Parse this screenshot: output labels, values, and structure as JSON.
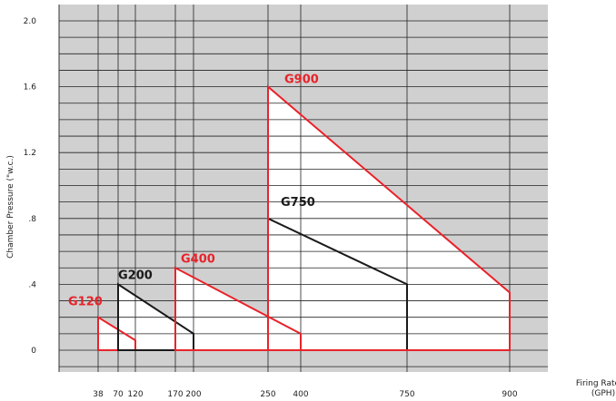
{
  "chart_data": {
    "type": "area",
    "xlabel": "Firing Rate",
    "xlabel_unit": "(GPH)",
    "ylabel": "Chamber Pressure (\"w.c.)",
    "x_ticks": [
      "38",
      "70",
      "120",
      "170",
      "200",
      "250",
      "400",
      "750",
      "900"
    ],
    "y_ticks": [
      "0",
      ".4",
      ".8",
      "1.2",
      "1.6",
      "2.0"
    ],
    "y_tick_values": [
      0,
      0.4,
      0.8,
      1.2,
      1.6,
      2.0
    ],
    "ylim": [
      -0.14,
      2.0
    ],
    "grid": true,
    "background": "#d0d0d0",
    "series": [
      {
        "name": "G120",
        "color": "#e8232a",
        "points": [
          [
            38,
            0
          ],
          [
            38,
            0.2
          ],
          [
            120,
            0.06
          ],
          [
            120,
            0
          ]
        ]
      },
      {
        "name": "G200",
        "color": "#1a1a1a",
        "points": [
          [
            70,
            0
          ],
          [
            70,
            0.4
          ],
          [
            200,
            0.1
          ],
          [
            200,
            0
          ]
        ]
      },
      {
        "name": "G400",
        "color": "#e8232a",
        "points": [
          [
            170,
            0
          ],
          [
            170,
            0.5
          ],
          [
            400,
            0.1
          ],
          [
            400,
            0
          ]
        ]
      },
      {
        "name": "G750",
        "color": "#1a1a1a",
        "points": [
          [
            250,
            0
          ],
          [
            250,
            0.8
          ],
          [
            750,
            0.4
          ],
          [
            750,
            0
          ]
        ]
      },
      {
        "name": "G900",
        "color": "#e8232a",
        "points": [
          [
            250,
            0
          ],
          [
            250,
            1.6
          ],
          [
            900,
            0.35
          ],
          [
            900,
            0
          ]
        ]
      }
    ]
  }
}
